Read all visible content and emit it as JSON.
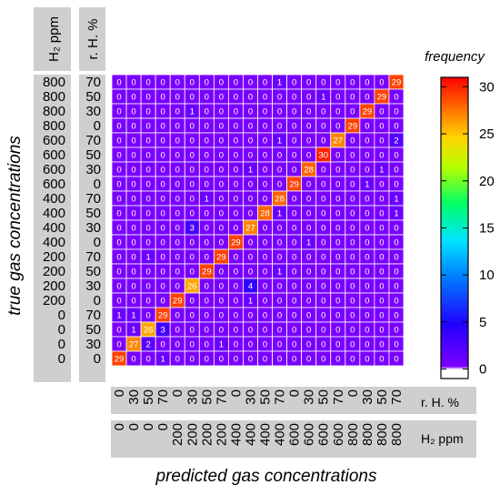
{
  "chart_data": {
    "type": "heatmap",
    "row_labels_h2": [
      "800",
      "800",
      "800",
      "800",
      "600",
      "600",
      "600",
      "600",
      "400",
      "400",
      "400",
      "400",
      "200",
      "200",
      "200",
      "200",
      "0",
      "0",
      "0",
      "0"
    ],
    "row_labels_rh": [
      "70",
      "50",
      "30",
      "0",
      "70",
      "50",
      "30",
      "0",
      "70",
      "50",
      "30",
      "0",
      "70",
      "50",
      "30",
      "0",
      "70",
      "50",
      "30",
      "0"
    ],
    "col_labels_rh": [
      "0",
      "30",
      "50",
      "70",
      "0",
      "30",
      "50",
      "70",
      "0",
      "30",
      "50",
      "70",
      "0",
      "30",
      "50",
      "70",
      "0",
      "30",
      "50",
      "70"
    ],
    "col_labels_h2": [
      "0",
      "0",
      "0",
      "0",
      "200",
      "200",
      "200",
      "200",
      "400",
      "400",
      "400",
      "400",
      "600",
      "600",
      "600",
      "600",
      "800",
      "800",
      "800",
      "800"
    ],
    "matrix": [
      [
        0,
        0,
        0,
        0,
        0,
        0,
        0,
        0,
        0,
        0,
        0,
        1,
        0,
        0,
        0,
        0,
        0,
        0,
        0,
        29
      ],
      [
        0,
        0,
        0,
        0,
        0,
        0,
        0,
        0,
        0,
        0,
        0,
        0,
        0,
        0,
        1,
        0,
        0,
        0,
        29,
        0
      ],
      [
        0,
        0,
        0,
        0,
        0,
        1,
        0,
        0,
        0,
        0,
        0,
        0,
        0,
        0,
        0,
        0,
        0,
        29,
        0,
        0
      ],
      [
        0,
        0,
        0,
        0,
        0,
        0,
        0,
        0,
        0,
        0,
        0,
        0,
        0,
        0,
        0,
        0,
        29,
        0,
        0,
        0
      ],
      [
        0,
        0,
        0,
        0,
        0,
        0,
        0,
        0,
        0,
        0,
        0,
        1,
        0,
        0,
        0,
        27,
        0,
        0,
        0,
        2
      ],
      [
        0,
        0,
        0,
        0,
        0,
        0,
        0,
        0,
        0,
        0,
        0,
        0,
        0,
        0,
        30,
        0,
        0,
        0,
        0,
        0
      ],
      [
        0,
        0,
        0,
        0,
        0,
        0,
        0,
        0,
        0,
        1,
        0,
        0,
        0,
        28,
        0,
        0,
        0,
        0,
        1,
        0
      ],
      [
        0,
        0,
        0,
        0,
        0,
        0,
        0,
        0,
        0,
        0,
        0,
        0,
        29,
        0,
        0,
        0,
        0,
        1,
        0,
        0
      ],
      [
        0,
        0,
        0,
        0,
        0,
        0,
        1,
        0,
        0,
        0,
        0,
        28,
        0,
        0,
        0,
        0,
        0,
        0,
        0,
        1
      ],
      [
        0,
        0,
        0,
        0,
        0,
        0,
        0,
        0,
        0,
        0,
        28,
        1,
        0,
        0,
        0,
        0,
        0,
        0,
        0,
        1
      ],
      [
        0,
        0,
        0,
        0,
        0,
        3,
        0,
        0,
        0,
        27,
        0,
        0,
        0,
        0,
        0,
        0,
        0,
        0,
        0,
        0
      ],
      [
        0,
        0,
        0,
        0,
        0,
        0,
        0,
        0,
        29,
        0,
        0,
        0,
        0,
        1,
        0,
        0,
        0,
        0,
        0,
        0
      ],
      [
        0,
        0,
        1,
        0,
        0,
        0,
        0,
        29,
        0,
        0,
        0,
        0,
        0,
        0,
        0,
        0,
        0,
        0,
        0,
        0
      ],
      [
        0,
        0,
        0,
        0,
        0,
        0,
        29,
        0,
        0,
        0,
        0,
        1,
        0,
        0,
        0,
        0,
        0,
        0,
        0,
        0
      ],
      [
        0,
        0,
        0,
        0,
        0,
        26,
        0,
        0,
        0,
        4,
        0,
        0,
        0,
        0,
        0,
        0,
        0,
        0,
        0,
        0
      ],
      [
        0,
        0,
        0,
        0,
        29,
        0,
        0,
        0,
        0,
        1,
        0,
        0,
        0,
        0,
        0,
        0,
        0,
        0,
        0,
        0
      ],
      [
        1,
        1,
        0,
        29,
        0,
        0,
        0,
        0,
        0,
        0,
        0,
        0,
        0,
        0,
        0,
        0,
        0,
        0,
        0,
        0
      ],
      [
        0,
        1,
        26,
        3,
        0,
        0,
        0,
        0,
        0,
        0,
        0,
        0,
        0,
        0,
        0,
        0,
        0,
        0,
        0,
        0
      ],
      [
        0,
        27,
        2,
        0,
        0,
        0,
        0,
        1,
        0,
        0,
        0,
        0,
        0,
        0,
        0,
        0,
        0,
        0,
        0,
        0
      ],
      [
        29,
        0,
        0,
        1,
        0,
        0,
        0,
        0,
        0,
        0,
        0,
        0,
        0,
        0,
        0,
        0,
        0,
        0,
        0,
        0
      ]
    ],
    "colorbar": {
      "title": "frequency",
      "ticks": [
        "0",
        "5",
        "10",
        "15",
        "20",
        "25",
        "30"
      ],
      "range": [
        -1,
        31
      ]
    },
    "xlabel": "predicted gas concentrations",
    "ylabel": "true gas concentrations",
    "x_rh_unit": "r. H. %",
    "x_h2_unit": "H₂ ppm",
    "y_h2_header": "H₂ ppm",
    "y_rh_header": "r. H. %"
  }
}
